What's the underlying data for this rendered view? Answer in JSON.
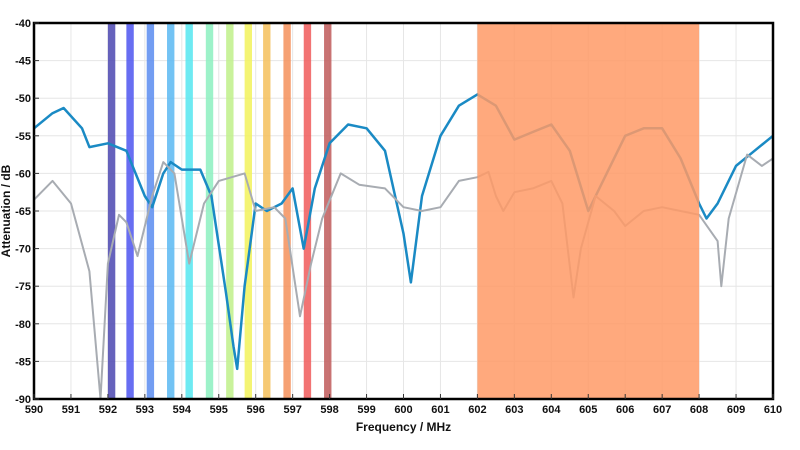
{
  "chart_data": {
    "type": "line",
    "title": "",
    "xlabel": "Frequency / MHz",
    "ylabel": "Attenuation / dB",
    "xlim": [
      590,
      610
    ],
    "ylim": [
      -90,
      -40
    ],
    "xticks": [
      590,
      591,
      592,
      593,
      594,
      595,
      596,
      597,
      598,
      599,
      600,
      601,
      602,
      603,
      604,
      605,
      606,
      607,
      608,
      609,
      610
    ],
    "yticks": [
      -40,
      -45,
      -50,
      -55,
      -60,
      -65,
      -70,
      -75,
      -80,
      -85,
      -90
    ],
    "grid": true,
    "series": [
      {
        "name": "blue trace",
        "color": "#1a8ac4",
        "x": [
          590,
          590.5,
          590.8,
          591.3,
          591.5,
          592,
          592.5,
          593,
          593.2,
          593.5,
          593.7,
          594,
          594.5,
          594.8,
          595.2,
          595.4,
          595.5,
          595.7,
          596,
          596.3,
          596.7,
          597,
          597.3,
          597.6,
          598,
          598.5,
          599,
          599.5,
          600,
          600.2,
          600.5,
          601,
          601.5,
          602,
          602.5,
          603,
          603.5,
          604,
          604.5,
          605,
          605.5,
          606,
          606.5,
          607,
          607.5,
          608,
          608.2,
          608.5,
          609,
          609.5,
          610
        ],
        "y": [
          -54,
          -52,
          -51.3,
          -54,
          -56.5,
          -56,
          -57,
          -63,
          -64.5,
          -60,
          -58.5,
          -59.5,
          -59.5,
          -63,
          -76,
          -83,
          -86,
          -75,
          -64,
          -65,
          -64,
          -62,
          -70,
          -62,
          -56,
          -53.5,
          -54,
          -57,
          -68,
          -74.5,
          -63,
          -55,
          -51,
          -49.5,
          -51,
          -55.5,
          -54.5,
          -53.5,
          -57,
          -65,
          -60,
          -55,
          -54,
          -54,
          -58,
          -64,
          -66,
          -64,
          -59,
          -57,
          -55
        ]
      },
      {
        "name": "gray trace",
        "color": "#a8acb2",
        "x": [
          590,
          590.5,
          591,
          591.5,
          591.8,
          592,
          592.3,
          592.5,
          592.8,
          593.2,
          593.5,
          593.8,
          594.2,
          594.6,
          595,
          595.7,
          596,
          596.5,
          596.8,
          597.2,
          597.5,
          597.8,
          598.3,
          598.8,
          599.5,
          600,
          600.5,
          601,
          601.5,
          602,
          602.3,
          602.5,
          602.7,
          603,
          603.5,
          604,
          604.3,
          604.6,
          604.8,
          605.2,
          605.7,
          606,
          606.5,
          607,
          607.5,
          608,
          608.5,
          608.6,
          608.8,
          609.3,
          609.7,
          610
        ],
        "y": [
          -63.5,
          -61,
          -64,
          -73,
          -90,
          -72,
          -65.5,
          -66.5,
          -71,
          -63,
          -58.5,
          -60,
          -72,
          -64,
          -61,
          -60,
          -65,
          -64.5,
          -66,
          -79,
          -72,
          -66,
          -60,
          -61.5,
          -62,
          -64.5,
          -65,
          -64.5,
          -61,
          -60.5,
          -59.8,
          -63,
          -65,
          -62.5,
          -62,
          -61,
          -64,
          -76.5,
          -70,
          -63,
          -65,
          -67,
          -65,
          -64.5,
          -65,
          -65.5,
          -69,
          -75,
          -66,
          -57.5,
          -59,
          -58
        ]
      }
    ],
    "bands": [
      {
        "center": 592.1,
        "width": 0.2,
        "color": "#4b47b0"
      },
      {
        "center": 592.6,
        "width": 0.2,
        "color": "#4d55f0"
      },
      {
        "center": 593.15,
        "width": 0.2,
        "color": "#5a8cf0"
      },
      {
        "center": 593.7,
        "width": 0.2,
        "color": "#5ab8f2"
      },
      {
        "center": 594.2,
        "width": 0.2,
        "color": "#55e6f0"
      },
      {
        "center": 594.75,
        "width": 0.2,
        "color": "#8cf0c0"
      },
      {
        "center": 595.3,
        "width": 0.2,
        "color": "#c0f08a"
      },
      {
        "center": 595.8,
        "width": 0.2,
        "color": "#f2f25a"
      },
      {
        "center": 596.3,
        "width": 0.2,
        "color": "#f5c05a"
      },
      {
        "center": 596.85,
        "width": 0.2,
        "color": "#f5905a"
      },
      {
        "center": 597.4,
        "width": 0.2,
        "color": "#f05a5a"
      },
      {
        "center": 597.95,
        "width": 0.2,
        "color": "#c05a5a"
      }
    ],
    "region": {
      "from": 602,
      "to": 608,
      "color": "#ff9a66"
    }
  }
}
